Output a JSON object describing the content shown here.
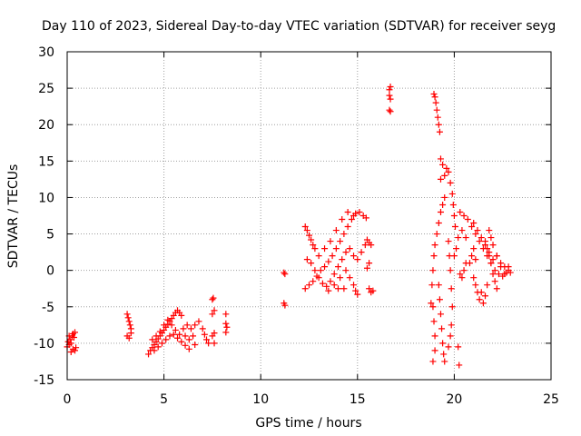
{
  "chart_data": {
    "type": "scatter",
    "title": "Day 110 of 2023, Sidereal Day-to-day VTEC variation (SDTVAR) for receiver seyg",
    "xlabel": "GPS time / hours",
    "ylabel": "SDTVAR / TECUs",
    "xlim": [
      0,
      25
    ],
    "ylim": [
      -15,
      30
    ],
    "xticks": [
      0,
      5,
      10,
      15,
      20,
      25
    ],
    "yticks": [
      -15,
      -10,
      -5,
      0,
      5,
      10,
      15,
      20,
      25,
      30
    ],
    "grid": true,
    "marker": "plus",
    "color": "#ff0000",
    "series": [
      {
        "name": "SDTVAR",
        "points": [
          [
            0.0,
            -10.5
          ],
          [
            0.05,
            -9.8
          ],
          [
            0.1,
            -10.2
          ],
          [
            0.15,
            -9.5
          ],
          [
            0.2,
            -10.0
          ],
          [
            0.25,
            -9.0
          ],
          [
            0.3,
            -8.7
          ],
          [
            0.35,
            -9.2
          ],
          [
            0.4,
            -8.5
          ],
          [
            0.4,
            -11.0
          ],
          [
            0.45,
            -10.6
          ],
          [
            0.2,
            -11.2
          ],
          [
            0.1,
            -9.0
          ],
          [
            0.3,
            -10.8
          ],
          [
            3.1,
            -6.0
          ],
          [
            3.15,
            -6.5
          ],
          [
            3.2,
            -7.0
          ],
          [
            3.25,
            -7.5
          ],
          [
            3.3,
            -8.0
          ],
          [
            3.1,
            -9.0
          ],
          [
            3.2,
            -9.3
          ],
          [
            3.3,
            -8.6
          ],
          [
            4.2,
            -11.5
          ],
          [
            4.3,
            -11.0
          ],
          [
            4.4,
            -10.6
          ],
          [
            4.5,
            -10.2
          ],
          [
            4.6,
            -9.8
          ],
          [
            4.7,
            -9.4
          ],
          [
            4.8,
            -9.0
          ],
          [
            4.9,
            -8.6
          ],
          [
            5.0,
            -8.2
          ],
          [
            5.1,
            -7.8
          ],
          [
            5.2,
            -7.4
          ],
          [
            5.3,
            -7.0
          ],
          [
            5.4,
            -6.6
          ],
          [
            5.5,
            -6.2
          ],
          [
            5.6,
            -5.8
          ],
          [
            5.7,
            -5.5
          ],
          [
            5.8,
            -5.8
          ],
          [
            5.9,
            -6.2
          ],
          [
            4.4,
            -9.5
          ],
          [
            4.6,
            -9.0
          ],
          [
            4.8,
            -8.4
          ],
          [
            5.0,
            -7.5
          ],
          [
            5.2,
            -6.8
          ],
          [
            5.4,
            -7.5
          ],
          [
            5.6,
            -8.2
          ],
          [
            5.8,
            -8.8
          ],
          [
            6.0,
            -8.0
          ],
          [
            6.2,
            -7.5
          ],
          [
            6.4,
            -8.0
          ],
          [
            6.5,
            -9.0
          ],
          [
            6.6,
            -10.2
          ],
          [
            6.3,
            -9.5
          ],
          [
            6.1,
            -9.0
          ],
          [
            4.5,
            -11.0
          ],
          [
            4.7,
            -10.5
          ],
          [
            4.9,
            -10.0
          ],
          [
            5.1,
            -9.5
          ],
          [
            5.3,
            -9.0
          ],
          [
            5.5,
            -8.8
          ],
          [
            5.7,
            -9.3
          ],
          [
            5.9,
            -9.8
          ],
          [
            6.1,
            -10.3
          ],
          [
            6.3,
            -10.8
          ],
          [
            6.6,
            -7.5
          ],
          [
            6.8,
            -7.0
          ],
          [
            7.0,
            -8.0
          ],
          [
            7.1,
            -8.8
          ],
          [
            7.2,
            -9.5
          ],
          [
            7.3,
            -10.0
          ],
          [
            7.5,
            -9.0
          ],
          [
            7.6,
            -8.6
          ],
          [
            7.6,
            -10.0
          ],
          [
            7.5,
            -4.0
          ],
          [
            7.55,
            -3.8
          ],
          [
            7.6,
            -5.5
          ],
          [
            7.5,
            -6.0
          ],
          [
            8.2,
            -6.0
          ],
          [
            8.2,
            -7.3
          ],
          [
            8.25,
            -7.8
          ],
          [
            8.2,
            -8.5
          ],
          [
            11.2,
            -0.3
          ],
          [
            11.25,
            -0.5
          ],
          [
            11.2,
            -4.5
          ],
          [
            11.25,
            -4.8
          ],
          [
            12.3,
            6.0
          ],
          [
            12.4,
            5.5
          ],
          [
            12.5,
            4.8
          ],
          [
            12.6,
            4.2
          ],
          [
            12.7,
            3.5
          ],
          [
            12.8,
            3.0
          ],
          [
            12.3,
            -2.5
          ],
          [
            12.5,
            -2.0
          ],
          [
            12.7,
            -1.5
          ],
          [
            12.9,
            -0.8
          ],
          [
            13.1,
            0.0
          ],
          [
            13.3,
            0.5
          ],
          [
            13.5,
            1.2
          ],
          [
            13.7,
            2.0
          ],
          [
            13.9,
            3.0
          ],
          [
            14.1,
            4.0
          ],
          [
            14.3,
            5.0
          ],
          [
            14.5,
            6.0
          ],
          [
            14.7,
            7.0
          ],
          [
            14.9,
            7.8
          ],
          [
            15.1,
            8.0
          ],
          [
            15.3,
            7.5
          ],
          [
            15.45,
            7.2
          ],
          [
            12.4,
            1.5
          ],
          [
            12.6,
            1.0
          ],
          [
            12.8,
            0.0
          ],
          [
            13.0,
            -1.0
          ],
          [
            13.2,
            -1.8
          ],
          [
            13.4,
            -2.2
          ],
          [
            13.6,
            -1.5
          ],
          [
            13.8,
            -0.5
          ],
          [
            14.0,
            0.5
          ],
          [
            14.2,
            1.5
          ],
          [
            14.4,
            2.5
          ],
          [
            14.6,
            3.0
          ],
          [
            14.8,
            2.0
          ],
          [
            15.0,
            1.5
          ],
          [
            15.2,
            2.5
          ],
          [
            15.4,
            3.5
          ],
          [
            15.5,
            4.2
          ],
          [
            15.6,
            3.8
          ],
          [
            13.0,
            2.0
          ],
          [
            13.3,
            3.0
          ],
          [
            13.6,
            4.0
          ],
          [
            13.9,
            5.5
          ],
          [
            14.2,
            7.0
          ],
          [
            14.5,
            8.0
          ],
          [
            14.8,
            7.5
          ],
          [
            13.5,
            -2.8
          ],
          [
            13.8,
            -2.0
          ],
          [
            14.1,
            -1.0
          ],
          [
            14.4,
            0.0
          ],
          [
            14.6,
            -1.0
          ],
          [
            14.8,
            -2.0
          ],
          [
            14.9,
            -2.8
          ],
          [
            15.0,
            -3.3
          ],
          [
            14.0,
            -2.5
          ],
          [
            14.3,
            -2.5
          ],
          [
            15.6,
            1.0
          ],
          [
            15.5,
            0.3
          ],
          [
            15.6,
            -2.5
          ],
          [
            15.7,
            -3.0
          ],
          [
            15.8,
            -2.8
          ],
          [
            15.7,
            3.5
          ],
          [
            16.65,
            24.8
          ],
          [
            16.7,
            25.2
          ],
          [
            16.65,
            24.0
          ],
          [
            16.7,
            23.5
          ],
          [
            16.65,
            22.0
          ],
          [
            16.7,
            21.8
          ],
          [
            18.95,
            24.2
          ],
          [
            19.0,
            23.8
          ],
          [
            19.05,
            23.0
          ],
          [
            19.1,
            22.0
          ],
          [
            19.15,
            21.0
          ],
          [
            19.2,
            20.0
          ],
          [
            19.25,
            19.0
          ],
          [
            19.3,
            15.3
          ],
          [
            19.4,
            14.5
          ],
          [
            19.3,
            12.5
          ],
          [
            19.5,
            13.0
          ],
          [
            19.6,
            14.0
          ],
          [
            19.7,
            13.5
          ],
          [
            19.8,
            12.0
          ],
          [
            19.9,
            10.5
          ],
          [
            19.95,
            9.0
          ],
          [
            20.0,
            7.5
          ],
          [
            20.05,
            6.0
          ],
          [
            19.5,
            10.0
          ],
          [
            19.4,
            9.0
          ],
          [
            19.3,
            8.0
          ],
          [
            19.2,
            6.5
          ],
          [
            19.1,
            5.0
          ],
          [
            19.0,
            3.5
          ],
          [
            18.95,
            2.0
          ],
          [
            18.9,
            0.0
          ],
          [
            18.85,
            -2.0
          ],
          [
            18.8,
            -4.5
          ],
          [
            19.2,
            -2.0
          ],
          [
            19.25,
            -4.0
          ],
          [
            19.3,
            -6.0
          ],
          [
            19.35,
            -8.0
          ],
          [
            19.4,
            -10.0
          ],
          [
            19.45,
            -11.5
          ],
          [
            19.5,
            -12.5
          ],
          [
            18.9,
            -5.0
          ],
          [
            18.95,
            -7.0
          ],
          [
            19.0,
            -9.0
          ],
          [
            19.0,
            -11.0
          ],
          [
            18.9,
            -12.5
          ],
          [
            19.7,
            4.0
          ],
          [
            19.75,
            2.0
          ],
          [
            19.8,
            0.0
          ],
          [
            19.85,
            -2.5
          ],
          [
            19.9,
            -5.0
          ],
          [
            19.85,
            -7.5
          ],
          [
            19.8,
            -9.0
          ],
          [
            19.7,
            -10.5
          ],
          [
            20.2,
            -10.5
          ],
          [
            20.25,
            -13.0
          ],
          [
            20.0,
            2.0
          ],
          [
            20.1,
            3.0
          ],
          [
            20.2,
            4.5
          ],
          [
            20.4,
            5.5
          ],
          [
            20.6,
            4.5
          ],
          [
            20.3,
            8.0
          ],
          [
            20.5,
            7.5
          ],
          [
            20.7,
            7.0
          ],
          [
            20.9,
            6.0
          ],
          [
            21.1,
            5.0
          ],
          [
            21.3,
            4.0
          ],
          [
            21.5,
            3.0
          ],
          [
            21.7,
            2.0
          ],
          [
            21.9,
            1.0
          ],
          [
            22.1,
            0.0
          ],
          [
            22.3,
            -0.5
          ],
          [
            22.5,
            -0.8
          ],
          [
            22.7,
            -0.3
          ],
          [
            22.8,
            0.5
          ],
          [
            20.5,
            0.0
          ],
          [
            20.4,
            -1.0
          ],
          [
            20.3,
            -0.5
          ],
          [
            20.6,
            1.0
          ],
          [
            21.0,
            6.5
          ],
          [
            21.2,
            5.5
          ],
          [
            21.4,
            4.5
          ],
          [
            21.6,
            3.5
          ],
          [
            21.8,
            2.5
          ],
          [
            22.0,
            1.5
          ],
          [
            22.2,
            2.0
          ],
          [
            22.4,
            1.0
          ],
          [
            22.6,
            0.5
          ],
          [
            21.0,
            -1.0
          ],
          [
            21.1,
            -2.0
          ],
          [
            21.2,
            -3.0
          ],
          [
            21.3,
            -4.0
          ],
          [
            21.4,
            -3.0
          ],
          [
            21.5,
            -4.5
          ],
          [
            21.6,
            -3.5
          ],
          [
            21.7,
            -2.0
          ],
          [
            21.8,
            5.5
          ],
          [
            21.9,
            4.5
          ],
          [
            22.0,
            3.5
          ],
          [
            22.2,
            2.0
          ],
          [
            22.4,
            0.5
          ],
          [
            22.6,
            -0.5
          ],
          [
            22.8,
            0.0
          ],
          [
            22.9,
            -0.3
          ],
          [
            21.6,
            4.0
          ],
          [
            21.7,
            3.0
          ],
          [
            21.8,
            2.0
          ],
          [
            21.9,
            1.0
          ],
          [
            22.0,
            -0.5
          ],
          [
            22.1,
            -1.5
          ],
          [
            22.2,
            -2.5
          ],
          [
            20.8,
            1.0
          ],
          [
            20.9,
            2.0
          ],
          [
            21.0,
            3.0
          ],
          [
            21.1,
            1.5
          ]
        ]
      }
    ]
  }
}
